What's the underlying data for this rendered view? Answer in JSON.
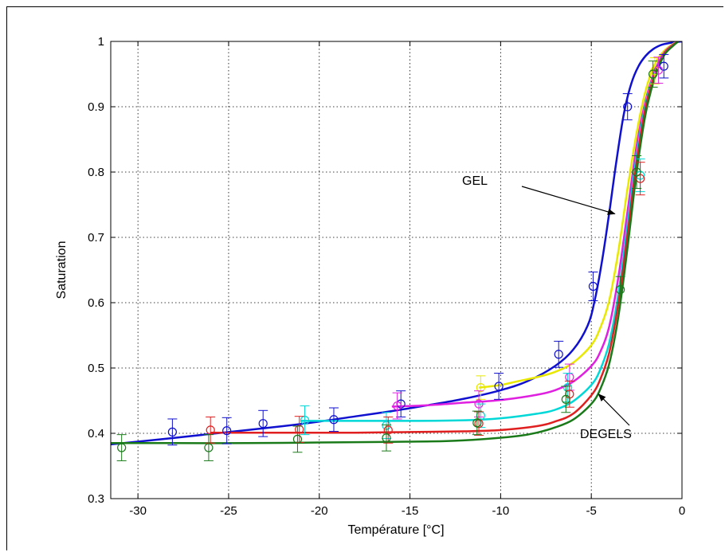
{
  "chart_data": {
    "type": "line",
    "title": "",
    "xlabel": "Température [°C]",
    "ylabel": "Saturation",
    "xlim": [
      -31.5,
      0
    ],
    "ylim": [
      0.3,
      1
    ],
    "xticks": [
      -30,
      -25,
      -20,
      -15,
      -10,
      -5,
      0
    ],
    "yticks": [
      0.3,
      0.4,
      0.5,
      0.6,
      0.7,
      0.8,
      0.9,
      1
    ],
    "xtick_labels": [
      "-30",
      "-25",
      "-20",
      "-15",
      "-10",
      "-5",
      "0"
    ],
    "ytick_labels": [
      "0.3",
      "0.4",
      "0.5",
      "0.6",
      "0.7",
      "0.8",
      "0.9",
      "1"
    ],
    "grid": true,
    "annotations": [
      {
        "text": "GEL",
        "points_to": {
          "x": -3.7,
          "y": 0.736
        }
      },
      {
        "text": "DEGELS",
        "points_to": {
          "x": -4.6,
          "y": 0.46
        }
      }
    ],
    "series": [
      {
        "color": "#1010d0",
        "curve": {
          "x": [
            -31.5,
            -28,
            -25,
            -22,
            -20,
            -18,
            -16,
            -14,
            -12,
            -10,
            -8.5,
            -7,
            -6,
            -5.2,
            -4.8,
            -4.4,
            -4.0,
            -3.6,
            -3.2,
            -2.8,
            -2.4,
            -2.0,
            -1.6,
            -1.2,
            -0.8,
            -0.3,
            0
          ],
          "y": [
            0.383,
            0.393,
            0.402,
            0.411,
            0.418,
            0.426,
            0.434,
            0.443,
            0.453,
            0.466,
            0.48,
            0.503,
            0.528,
            0.565,
            0.605,
            0.665,
            0.74,
            0.82,
            0.89,
            0.935,
            0.962,
            0.978,
            0.988,
            0.994,
            0.997,
            0.999,
            1.0
          ]
        },
        "markers": [
          {
            "x": -28.1,
            "y": 0.402,
            "err": 0.02
          },
          {
            "x": -25.1,
            "y": 0.404,
            "err": 0.02
          },
          {
            "x": -23.1,
            "y": 0.415,
            "err": 0.02
          },
          {
            "x": -19.2,
            "y": 0.421,
            "err": 0.018
          },
          {
            "x": -15.5,
            "y": 0.445,
            "err": 0.02
          },
          {
            "x": -10.1,
            "y": 0.472,
            "err": 0.02
          },
          {
            "x": -6.8,
            "y": 0.521,
            "err": 0.02
          },
          {
            "x": -4.9,
            "y": 0.625,
            "err": 0.022
          },
          {
            "x": -3.0,
            "y": 0.9,
            "err": 0.02
          },
          {
            "x": -1.0,
            "y": 0.962,
            "err": 0.018
          }
        ]
      },
      {
        "color": "#e8e800",
        "curve": {
          "x": [
            -11.2,
            -10,
            -9,
            -8,
            -7,
            -6,
            -5,
            -4.5,
            -4,
            -3.5,
            -3,
            -2.5,
            -2,
            -1.5,
            -1,
            -0.5,
            -0.2
          ],
          "y": [
            0.47,
            0.474,
            0.48,
            0.486,
            0.494,
            0.508,
            0.535,
            0.562,
            0.605,
            0.68,
            0.775,
            0.86,
            0.925,
            0.965,
            0.985,
            0.996,
            1.0
          ]
        },
        "markers": [
          {
            "x": -11.1,
            "y": 0.47,
            "err": 0.018
          },
          {
            "x": -1.5,
            "y": 0.955,
            "err": 0.02
          }
        ]
      },
      {
        "color": "#e020e0",
        "curve": {
          "x": [
            -16,
            -14,
            -12,
            -10,
            -8,
            -7,
            -6,
            -5,
            -4.5,
            -4,
            -3.5,
            -3,
            -2.5,
            -2,
            -1.5,
            -1,
            -0.5,
            -0.2
          ],
          "y": [
            0.441,
            0.443,
            0.447,
            0.451,
            0.459,
            0.466,
            0.479,
            0.503,
            0.525,
            0.565,
            0.64,
            0.74,
            0.84,
            0.91,
            0.955,
            0.982,
            0.995,
            1.0
          ]
        },
        "markers": [
          {
            "x": -15.7,
            "y": 0.442,
            "err": 0.02
          },
          {
            "x": -11.2,
            "y": 0.445,
            "err": 0.02
          },
          {
            "x": -6.2,
            "y": 0.486,
            "err": 0.02
          },
          {
            "x": -1.3,
            "y": 0.956,
            "err": 0.02
          }
        ]
      },
      {
        "color": "#00d8d8",
        "curve": {
          "x": [
            -21,
            -18,
            -15,
            -12,
            -10,
            -8,
            -7,
            -6,
            -5,
            -4.5,
            -4,
            -3.5,
            -3,
            -2.5,
            -2,
            -1.5,
            -1,
            -0.5,
            -0.2
          ],
          "y": [
            0.419,
            0.419,
            0.419,
            0.42,
            0.423,
            0.43,
            0.436,
            0.449,
            0.474,
            0.498,
            0.54,
            0.615,
            0.72,
            0.825,
            0.905,
            0.952,
            0.98,
            0.994,
            1.0
          ]
        },
        "markers": [
          {
            "x": -20.8,
            "y": 0.42,
            "err": 0.022
          },
          {
            "x": -16.3,
            "y": 0.412,
            "err": 0.02
          },
          {
            "x": -11.1,
            "y": 0.427,
            "err": 0.018
          },
          {
            "x": -6.3,
            "y": 0.47,
            "err": 0.022
          },
          {
            "x": -2.3,
            "y": 0.795,
            "err": 0.025
          }
        ]
      },
      {
        "color": "#e02020",
        "curve": {
          "x": [
            -26,
            -22,
            -18,
            -15,
            -12,
            -10,
            -8,
            -7,
            -6,
            -5,
            -4.5,
            -4,
            -3.5,
            -3,
            -2.5,
            -2,
            -1.5,
            -1,
            -0.5,
            -0.2
          ],
          "y": [
            0.401,
            0.401,
            0.401,
            0.402,
            0.403,
            0.405,
            0.411,
            0.418,
            0.43,
            0.458,
            0.483,
            0.525,
            0.6,
            0.705,
            0.815,
            0.9,
            0.95,
            0.98,
            0.994,
            1.0
          ]
        },
        "markers": [
          {
            "x": -26.0,
            "y": 0.405,
            "err": 0.02
          },
          {
            "x": -21.1,
            "y": 0.406,
            "err": 0.02
          },
          {
            "x": -16.2,
            "y": 0.405,
            "err": 0.02
          },
          {
            "x": -11.2,
            "y": 0.415,
            "err": 0.018
          },
          {
            "x": -6.2,
            "y": 0.46,
            "err": 0.02
          },
          {
            "x": -2.3,
            "y": 0.79,
            "err": 0.025
          }
        ]
      },
      {
        "color": "#1a7a1a",
        "curve": {
          "x": [
            -31.5,
            -28,
            -24,
            -20,
            -16,
            -13,
            -11,
            -9,
            -8,
            -7,
            -6,
            -5,
            -4.5,
            -4,
            -3.5,
            -3,
            -2.5,
            -2,
            -1.5,
            -1,
            -0.5,
            -0.2
          ],
          "y": [
            0.385,
            0.385,
            0.385,
            0.386,
            0.387,
            0.388,
            0.391,
            0.396,
            0.401,
            0.409,
            0.421,
            0.445,
            0.468,
            0.508,
            0.58,
            0.685,
            0.8,
            0.89,
            0.945,
            0.978,
            0.993,
            1.0
          ]
        },
        "markers": [
          {
            "x": -30.9,
            "y": 0.378,
            "err": 0.02
          },
          {
            "x": -26.1,
            "y": 0.378,
            "err": 0.02
          },
          {
            "x": -21.2,
            "y": 0.391,
            "err": 0.02
          },
          {
            "x": -16.3,
            "y": 0.393,
            "err": 0.02
          },
          {
            "x": -11.3,
            "y": 0.416,
            "err": 0.018
          },
          {
            "x": -6.4,
            "y": 0.452,
            "err": 0.02
          },
          {
            "x": -3.4,
            "y": 0.62,
            "err": 0.02
          },
          {
            "x": -2.5,
            "y": 0.8,
            "err": 0.025
          },
          {
            "x": -1.6,
            "y": 0.95,
            "err": 0.02
          }
        ]
      }
    ]
  }
}
